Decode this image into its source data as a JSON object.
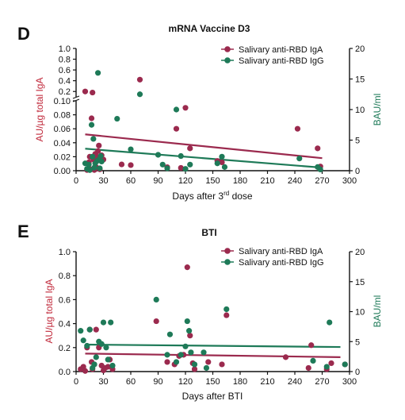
{
  "colors": {
    "iga": "#9b2a4e",
    "igg": "#1e7a58",
    "axis": "#111111",
    "left_label": "#c0283a",
    "right_label": "#1e7a58"
  },
  "chart_data": [
    {
      "type": "scatter",
      "panel_letter": "D",
      "title": "mRNA Vaccine D3",
      "xlabel_main": "Days after 3",
      "xlabel_sup": "rd",
      "xlabel_tail": " dose",
      "ylabel_left": "AU/µg total IgA",
      "ylabel_right": "BAU/ml",
      "xlim": [
        0,
        300
      ],
      "x_ticks": [
        "0",
        "30",
        "60",
        "90",
        "120",
        "150",
        "180",
        "210",
        "240",
        "270",
        "300"
      ],
      "left_axis": {
        "segments": [
          {
            "range": [
              0,
              0.1
            ],
            "ticks": [
              "0.00",
              "0.02",
              "0.04",
              "0.06",
              "0.08",
              "0.10"
            ]
          },
          {
            "range": [
              0.1,
              1.0
            ],
            "ticks": [
              "0.2",
              "0.4",
              "0.6",
              "0.8",
              "1.0"
            ]
          }
        ]
      },
      "right_axis": {
        "range": [
          0,
          20
        ],
        "ticks": [
          "0",
          "5",
          "10",
          "15",
          "20"
        ]
      },
      "legend": [
        "Salivary anti-RBD IgA",
        "Salivary anti-RBD IgG"
      ],
      "legend_position": "top-right",
      "series": [
        {
          "name": "Salivary anti-RBD IgA",
          "axis": "left",
          "points": [
            [
              10,
              0.2
            ],
            [
              12,
              0.001
            ],
            [
              14,
              0.012
            ],
            [
              15,
              0.02
            ],
            [
              16,
              0.002
            ],
            [
              17,
              0.075
            ],
            [
              18,
              0.18
            ],
            [
              19,
              0.016
            ],
            [
              20,
              0.001
            ],
            [
              21,
              0.024
            ],
            [
              22,
              0.005
            ],
            [
              23,
              0.02
            ],
            [
              24,
              0.028
            ],
            [
              25,
              0.036
            ],
            [
              26,
              0.002
            ],
            [
              27,
              0.018
            ],
            [
              28,
              0.022
            ],
            [
              30,
              0.016
            ],
            [
              50,
              0.009
            ],
            [
              60,
              0.008
            ],
            [
              70,
              0.42
            ],
            [
              100,
              0.005
            ],
            [
              110,
              0.06
            ],
            [
              115,
              0.004
            ],
            [
              120,
              0.09
            ],
            [
              125,
              0.032
            ],
            [
              155,
              0.014
            ],
            [
              160,
              0.012
            ],
            [
              243,
              0.06
            ],
            [
              265,
              0.032
            ],
            [
              268,
              0.006
            ]
          ],
          "trend": [
            [
              10,
              0.052
            ],
            [
              270,
              0.018
            ]
          ]
        },
        {
          "name": "Salivary anti-RBD IgG",
          "axis": "right",
          "points": [
            [
              10,
              1.2
            ],
            [
              12,
              0.3
            ],
            [
              14,
              1.0
            ],
            [
              15,
              0.1
            ],
            [
              17,
              7.5
            ],
            [
              18,
              2.3
            ],
            [
              19,
              5.2
            ],
            [
              20,
              0.5
            ],
            [
              21,
              1.2
            ],
            [
              23,
              1.6
            ],
            [
              24,
              16.0
            ],
            [
              25,
              1.8
            ],
            [
              26,
              0.4
            ],
            [
              27,
              2.4
            ],
            [
              28,
              1.5
            ],
            [
              45,
              8.5
            ],
            [
              60,
              3.5
            ],
            [
              70,
              12.5
            ],
            [
              90,
              2.6
            ],
            [
              95,
              1.0
            ],
            [
              100,
              0.4
            ],
            [
              110,
              10.0
            ],
            [
              115,
              2.4
            ],
            [
              120,
              0.3
            ],
            [
              125,
              1.0
            ],
            [
              155,
              1.2
            ],
            [
              160,
              2.3
            ],
            [
              163,
              0.6
            ],
            [
              245,
              2.0
            ],
            [
              265,
              0.6
            ],
            [
              268,
              0.2
            ]
          ],
          "trend": [
            [
              10,
              3.6
            ],
            [
              270,
              0.5
            ]
          ]
        }
      ]
    },
    {
      "type": "scatter",
      "panel_letter": "E",
      "title": "BTI",
      "xlabel_main": "Days after BTI",
      "ylabel_left": "AU/µg total IgA",
      "ylabel_right": "BAU/ml",
      "xlim": [
        0,
        300
      ],
      "x_ticks": [
        "0",
        "30",
        "60",
        "90",
        "120",
        "150",
        "180",
        "210",
        "240",
        "270",
        "300"
      ],
      "left_axis": {
        "range": [
          0,
          1.0
        ],
        "ticks": [
          "0.0",
          "0.2",
          "0.4",
          "0.6",
          "0.8",
          "1.0"
        ]
      },
      "right_axis": {
        "range": [
          0,
          20
        ],
        "ticks": [
          "0",
          "5",
          "10",
          "15",
          "20"
        ]
      },
      "legend": [
        "Salivary anti-RBD IgA",
        "Salivary anti-RBD IgG"
      ],
      "legend_position": "top-right",
      "series": [
        {
          "name": "Salivary anti-RBD IgA",
          "axis": "left",
          "points": [
            [
              5,
              0.02
            ],
            [
              8,
              0.04
            ],
            [
              10,
              0.005
            ],
            [
              12,
              0.2
            ],
            [
              15,
              0.35
            ],
            [
              17,
              0.08
            ],
            [
              18,
              0.02
            ],
            [
              20,
              0.06
            ],
            [
              22,
              0.35
            ],
            [
              25,
              0.2
            ],
            [
              28,
              0.05
            ],
            [
              30,
              0.01
            ],
            [
              32,
              0.03
            ],
            [
              35,
              0.04
            ],
            [
              37,
              0.1
            ],
            [
              40,
              0.02
            ],
            [
              88,
              0.42
            ],
            [
              100,
              0.08
            ],
            [
              108,
              0.06
            ],
            [
              113,
              0.13
            ],
            [
              118,
              0.14
            ],
            [
              122,
              0.87
            ],
            [
              125,
              0.3
            ],
            [
              128,
              0.07
            ],
            [
              130,
              0.02
            ],
            [
              145,
              0.08
            ],
            [
              160,
              0.06
            ],
            [
              165,
              0.47
            ],
            [
              230,
              0.12
            ],
            [
              255,
              0.03
            ],
            [
              258,
              0.22
            ],
            [
              275,
              0.02
            ],
            [
              280,
              0.07
            ],
            [
              295,
              0.06
            ]
          ],
          "trend": [
            [
              10,
              0.15
            ],
            [
              290,
              0.12
            ]
          ]
        },
        {
          "name": "Salivary anti-RBD IgG",
          "axis": "right",
          "points": [
            [
              5,
              6.8
            ],
            [
              8,
              5.2
            ],
            [
              12,
              4.3
            ],
            [
              15,
              7.0
            ],
            [
              18,
              0.6
            ],
            [
              20,
              1.2
            ],
            [
              22,
              2.4
            ],
            [
              25,
              5.0
            ],
            [
              28,
              4.6
            ],
            [
              30,
              8.2
            ],
            [
              33,
              4.0
            ],
            [
              35,
              2.0
            ],
            [
              38,
              8.2
            ],
            [
              40,
              1.0
            ],
            [
              88,
              12.0
            ],
            [
              100,
              2.8
            ],
            [
              103,
              6.2
            ],
            [
              110,
              1.6
            ],
            [
              115,
              2.8
            ],
            [
              120,
              4.2
            ],
            [
              122,
              8.4
            ],
            [
              124,
              6.8
            ],
            [
              126,
              3.2
            ],
            [
              130,
              1.2
            ],
            [
              140,
              3.2
            ],
            [
              143,
              0.6
            ],
            [
              165,
              10.4
            ],
            [
              260,
              1.8
            ],
            [
              275,
              0.8
            ],
            [
              278,
              8.2
            ],
            [
              295,
              1.2
            ]
          ],
          "trend": [
            [
              10,
              4.5
            ],
            [
              290,
              4.1
            ]
          ]
        }
      ]
    }
  ]
}
